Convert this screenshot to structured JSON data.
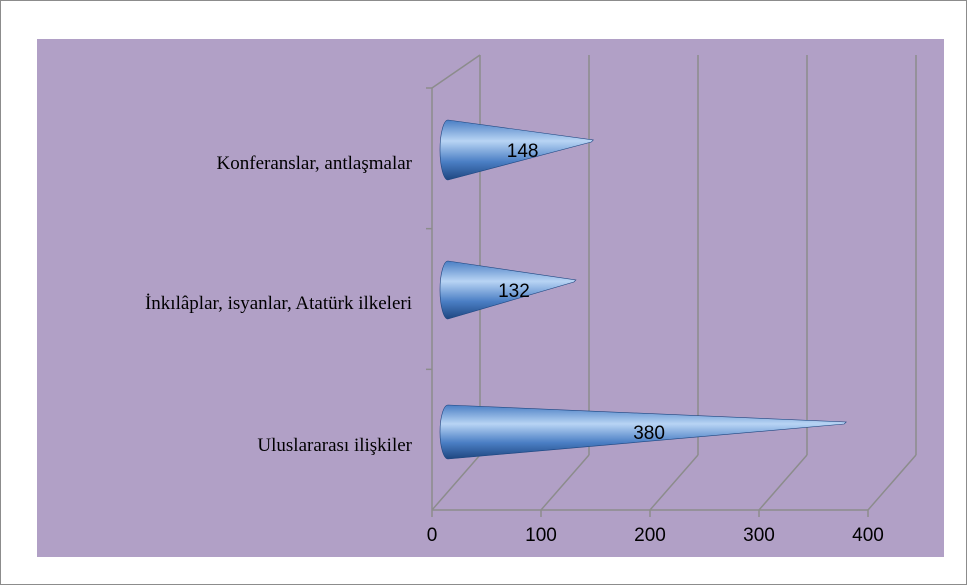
{
  "chart_data": {
    "type": "bar",
    "orientation": "horizontal",
    "style": "3d-cone",
    "categories": [
      "Konferanslar, antlaşmalar",
      "İnkılâplar, isyanlar, Atatürk ilkeleri",
      "Uluslararası ilişkiler"
    ],
    "values": [
      148,
      132,
      380
    ],
    "xlim": [
      0,
      400
    ],
    "xticks": [
      "0",
      "100",
      "200",
      "300",
      "400"
    ],
    "grid": true,
    "legend": "none",
    "colors": {
      "plot_background": "#b1a0c6",
      "bar": "#4a7ec4",
      "bar_highlight": "#b8d4f4",
      "bar_dark": "#1e4680",
      "axis": "#8c8c8c"
    }
  }
}
